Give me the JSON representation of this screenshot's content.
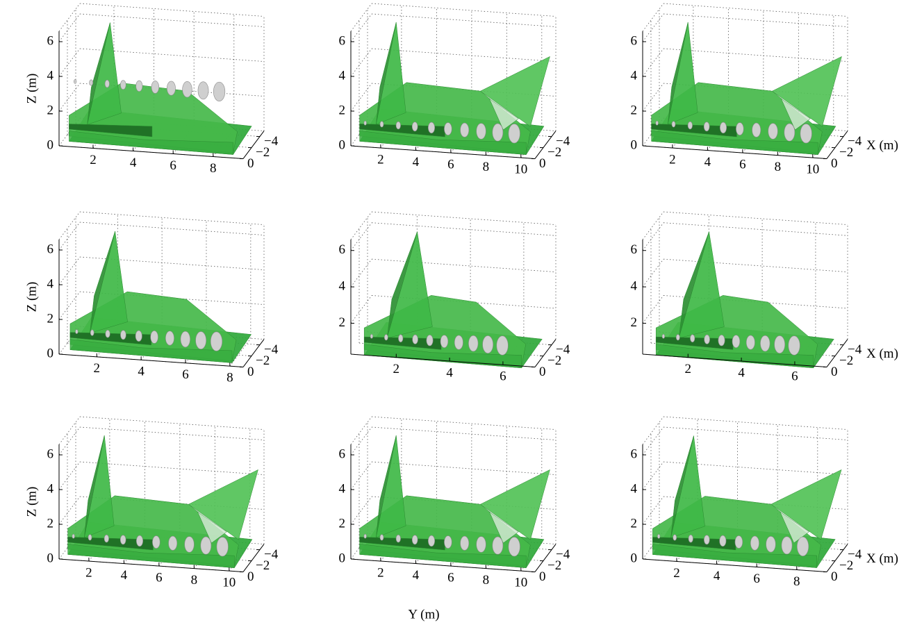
{
  "chart_data": [
    {
      "type": "surface3d",
      "zlabel": "Z (m)",
      "ylim": [
        0.3,
        9.5
      ],
      "yticks": [
        2,
        4,
        6,
        8
      ],
      "zlim": [
        0,
        6.6
      ],
      "zticks": [
        0,
        2,
        4,
        6
      ],
      "xlim": [
        -5,
        0
      ],
      "xticks": [
        {
          "value": -4,
          "label": "−4"
        },
        {
          "value": -2,
          "label": "−2"
        },
        0
      ]
    },
    {
      "type": "surface3d",
      "ylim": [
        0.3,
        10.8
      ],
      "yticks": [
        2,
        4,
        6,
        8,
        10
      ],
      "zlim": [
        0,
        6.6
      ],
      "zticks": [
        0,
        2,
        4,
        6
      ],
      "xlim": [
        -5,
        0
      ],
      "xticks": [
        {
          "value": -4,
          "label": "−4"
        },
        {
          "value": -2,
          "label": "−2"
        },
        0
      ]
    },
    {
      "type": "surface3d",
      "xlabel": "X (m)",
      "ylim": [
        0.3,
        10.8
      ],
      "yticks": [
        2,
        4,
        6,
        8,
        10
      ],
      "zlim": [
        0,
        6.6
      ],
      "zticks": [
        0,
        2,
        4,
        6
      ],
      "xlim": [
        -5,
        0
      ],
      "xticks": [
        {
          "value": -4,
          "label": "−4"
        },
        {
          "value": -2,
          "label": "−2"
        },
        0
      ]
    },
    {
      "type": "surface3d",
      "zlabel": "Z (m)",
      "ylim": [
        0.3,
        8.6
      ],
      "yticks": [
        2,
        4,
        6,
        8
      ],
      "zlim": [
        0,
        6.6
      ],
      "zticks": [
        0,
        2,
        4,
        6
      ],
      "xlim": [
        -5,
        0
      ],
      "xticks": [
        {
          "value": -4,
          "label": "−4"
        },
        {
          "value": -2,
          "label": "−2"
        },
        0
      ]
    },
    {
      "type": "surface3d",
      "ylim": [
        0.3,
        7.2
      ],
      "yticks": [
        2,
        4,
        6
      ],
      "zlim": [
        0.3,
        6.6
      ],
      "zticks": [
        2,
        4,
        6
      ],
      "xlim": [
        -5,
        0
      ],
      "xticks": [
        {
          "value": -4,
          "label": "−4"
        },
        {
          "value": -2,
          "label": "−2"
        },
        0
      ]
    },
    {
      "type": "surface3d",
      "xlabel": "X (m)",
      "ylim": [
        0.3,
        7.2
      ],
      "yticks": [
        2,
        4,
        6
      ],
      "zlim": [
        0.3,
        6.6
      ],
      "zticks": [
        2,
        4,
        6
      ],
      "xlim": [
        -5,
        0
      ],
      "xticks": [
        {
          "value": -4,
          "label": "−4"
        },
        {
          "value": -2,
          "label": "−2"
        },
        0
      ]
    },
    {
      "type": "surface3d",
      "zlabel": "Z (m)",
      "ylim": [
        0.3,
        10.8
      ],
      "yticks": [
        2,
        4,
        6,
        8,
        10
      ],
      "zlim": [
        0,
        6.6
      ],
      "zticks": [
        0,
        2,
        4,
        6
      ],
      "xlim": [
        -5,
        0
      ],
      "xticks": [
        {
          "value": -4,
          "label": "−4"
        },
        {
          "value": -2,
          "label": "−2"
        },
        0
      ]
    },
    {
      "type": "surface3d",
      "ylim": [
        0.3,
        10.8
      ],
      "yticks": [
        2,
        4,
        6,
        8,
        10
      ],
      "zlim": [
        0,
        6.6
      ],
      "zticks": [
        0,
        2,
        4,
        6
      ],
      "xlim": [
        -5,
        0
      ],
      "xticks": [
        {
          "value": -4,
          "label": "−4"
        },
        {
          "value": -2,
          "label": "−2"
        },
        0
      ]
    },
    {
      "type": "surface3d",
      "xlabel": "X (m)",
      "ylim": [
        0.3,
        9.5
      ],
      "yticks": [
        2,
        4,
        6,
        8
      ],
      "zlim": [
        0,
        6.6
      ],
      "zticks": [
        0,
        2,
        4,
        6
      ],
      "xlim": [
        -5,
        0
      ],
      "xticks": [
        {
          "value": -4,
          "label": "−4"
        },
        {
          "value": -2,
          "label": "−2"
        },
        0
      ]
    }
  ],
  "ylabel": "Y (m)"
}
